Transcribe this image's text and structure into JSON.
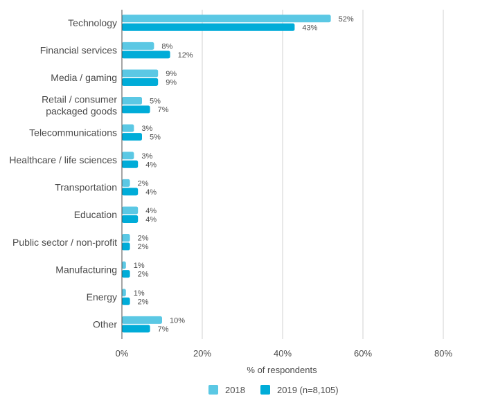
{
  "chart_data": {
    "type": "bar",
    "orientation": "horizontal",
    "categories": [
      "Technology",
      "Financial services",
      "Media / gaming",
      "Retail / consumer\npackaged goods",
      "Telecommunications",
      "Healthcare / life sciences",
      "Transportation",
      "Education",
      "Public sector / non-profit",
      "Manufacturing",
      "Energy",
      "Other"
    ],
    "series": [
      {
        "name": "2018",
        "color": "#5bc8e4",
        "values": [
          52,
          8,
          9,
          5,
          3,
          3,
          2,
          4,
          2,
          1,
          1,
          10
        ]
      },
      {
        "name": "2019 (n=8,105)",
        "color": "#00acd8",
        "values": [
          43,
          12,
          9,
          7,
          5,
          4,
          4,
          4,
          2,
          2,
          2,
          7
        ]
      }
    ],
    "xlabel": "% of respondents",
    "ylabel": "",
    "xlim": [
      0,
      80
    ],
    "xticks": [
      0,
      20,
      40,
      60,
      80
    ],
    "tick_suffix": "%",
    "value_suffix": "%",
    "grid": "vertical",
    "legend_position": "bottom"
  }
}
